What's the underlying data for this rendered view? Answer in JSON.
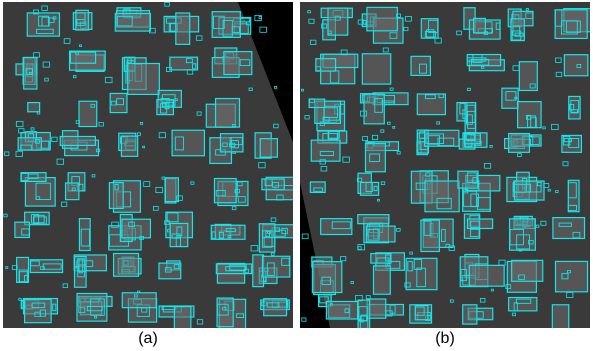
{
  "figure": {
    "panels": [
      {
        "id": "a",
        "caption": "(a)",
        "content": "aerial-building-footprints"
      },
      {
        "id": "b",
        "caption": "(b)",
        "content": "aerial-building-footprints"
      }
    ]
  },
  "colors": {
    "outline": "#14e6ea",
    "background": "#000000",
    "ground": "#3a3a3a",
    "roof": "#6b6b6b"
  }
}
